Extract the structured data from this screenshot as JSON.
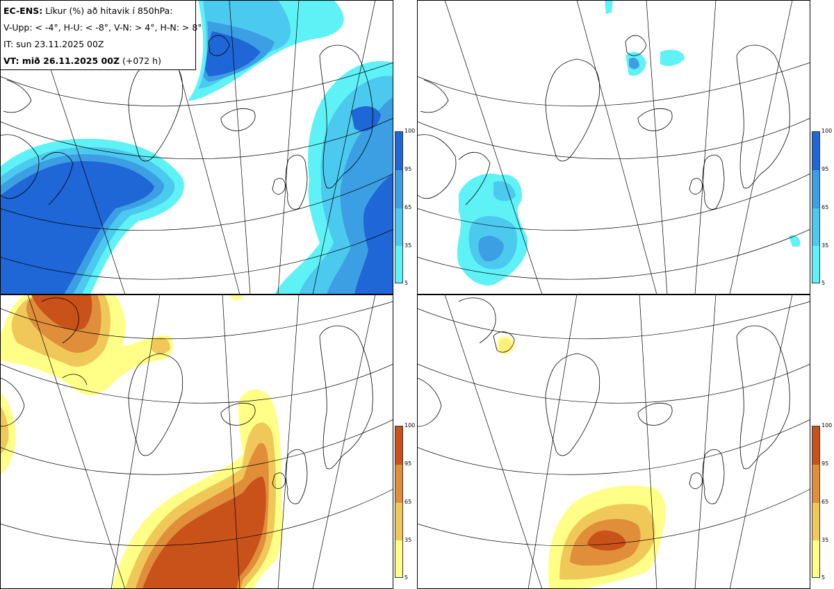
{
  "header": {
    "model_label": "EC-ENS:",
    "model_desc": "Líkur (%) að hitavik í 850hPa:",
    "thresholds": "V-Upp: < -4°, H-U: < -8°, V-N: > 4°, H-N: > 8°",
    "init_time": "IT: sun 23.11.2025 00Z",
    "valid_label": "VT: mið 26.11.2025 00Z",
    "lead": "(+072 h)"
  },
  "colorbar": {
    "ticks": [
      "100",
      "95",
      "65",
      "35",
      "5"
    ]
  },
  "colors": {
    "cold": [
      "#5ef2f7",
      "#4bc9ee",
      "#3c9fe3",
      "#1f66d6"
    ],
    "warm": [
      "#ffff88",
      "#f0c85a",
      "#e08e3a",
      "#c9511a"
    ],
    "coast": "#000000",
    "grid": "#000000"
  },
  "panels": [
    {
      "id": "top-left",
      "variable": "V-Upp",
      "palette": "cold"
    },
    {
      "id": "top-right",
      "variable": "H-U",
      "palette": "cold"
    },
    {
      "id": "bottom-left",
      "variable": "V-N",
      "palette": "warm"
    },
    {
      "id": "bottom-right",
      "variable": "H-N",
      "palette": "warm"
    }
  ]
}
